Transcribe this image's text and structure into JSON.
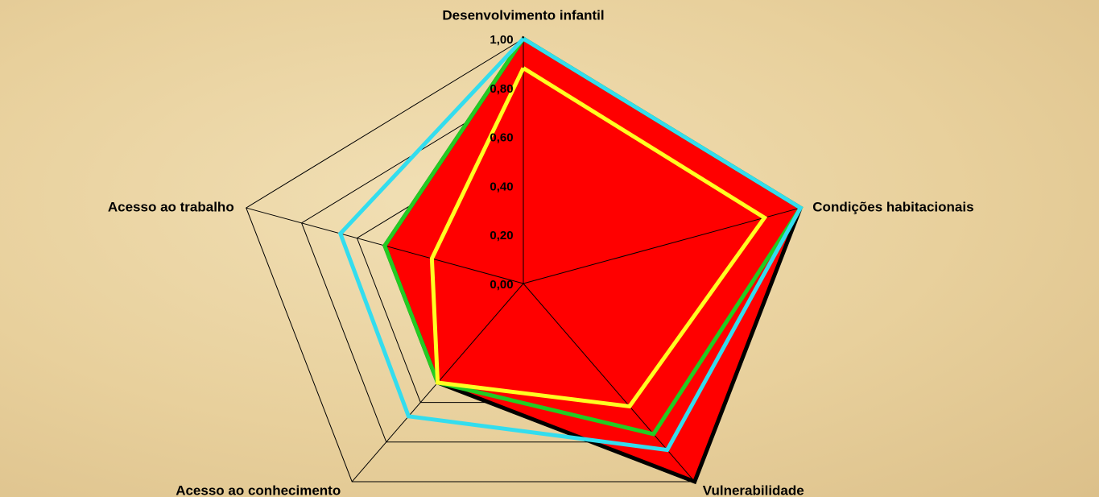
{
  "chart_data": {
    "type": "radar",
    "categories": [
      "Desenvolvimento infantil",
      "Condições habitacionais",
      "Vulnerabilidade",
      "Acesso ao conhecimento",
      "Acesso ao trabalho"
    ],
    "series": [
      {
        "color": "#ff0000",
        "edge_color": "#000000",
        "fill": true,
        "values": [
          1.0,
          1.0,
          1.0,
          0.5,
          0.5
        ]
      },
      {
        "color": "#22cc22",
        "values": [
          1.0,
          1.0,
          0.76,
          0.5,
          0.5
        ]
      },
      {
        "color": "#33ddee",
        "values": [
          1.0,
          1.0,
          0.84,
          0.67,
          0.66
        ]
      },
      {
        "color": "#ffff22",
        "values": [
          0.88,
          0.87,
          0.62,
          0.5,
          0.33
        ]
      }
    ],
    "ylim": [
      0,
      1
    ],
    "yticks": [
      {
        "value": 0,
        "label": "0,00"
      },
      {
        "value": 0.2,
        "label": "0,20"
      },
      {
        "value": 0.4,
        "label": "0,40"
      },
      {
        "value": 0.6,
        "label": "0,60"
      },
      {
        "value": 0.8,
        "label": "0,80"
      },
      {
        "value": 1,
        "label": "1,00"
      }
    ],
    "grid": true
  }
}
